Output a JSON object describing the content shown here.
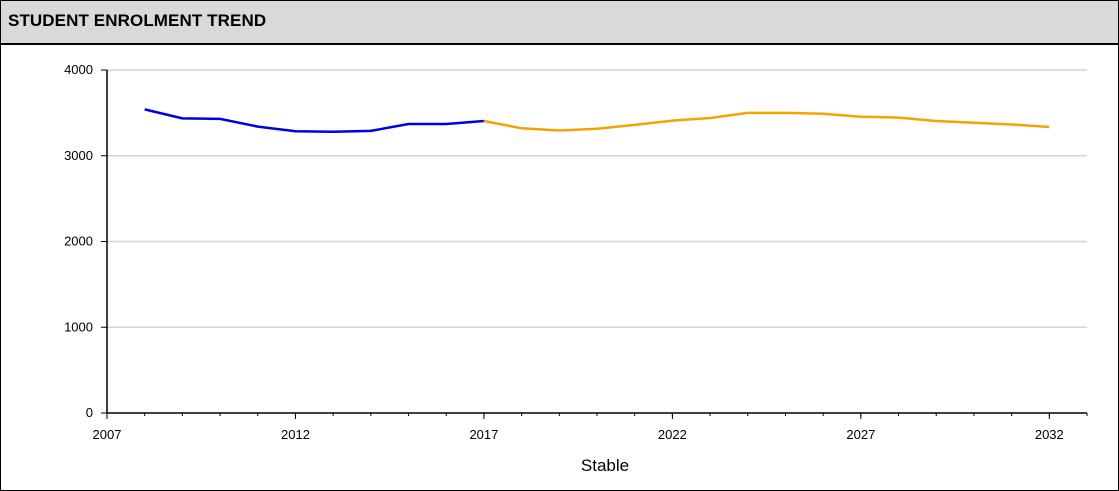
{
  "header": {
    "title": "STUDENT ENROLMENT TREND"
  },
  "chart_data": {
    "type": "line",
    "title": "STUDENT ENROLMENT TREND",
    "xlabel": "Stable",
    "ylabel": "",
    "xlim": [
      2007,
      2033
    ],
    "ylim": [
      0,
      4000
    ],
    "x_ticks": [
      "2007",
      "2012",
      "2017",
      "2022",
      "2027",
      "2032"
    ],
    "y_ticks": [
      "0",
      "1000",
      "2000",
      "3000",
      "4000"
    ],
    "grid": "horizontal",
    "legend": "none",
    "series": [
      {
        "color": "#0000e0",
        "points": [
          [
            2008,
            3540
          ],
          [
            2009,
            3435
          ],
          [
            2010,
            3430
          ],
          [
            2011,
            3340
          ],
          [
            2012,
            3285
          ],
          [
            2013,
            3280
          ],
          [
            2014,
            3290
          ],
          [
            2015,
            3370
          ],
          [
            2016,
            3370
          ],
          [
            2017,
            3405
          ]
        ]
      },
      {
        "color": "#f5a300",
        "points": [
          [
            2017,
            3405
          ],
          [
            2018,
            3320
          ],
          [
            2019,
            3295
          ],
          [
            2020,
            3315
          ],
          [
            2021,
            3360
          ],
          [
            2022,
            3410
          ],
          [
            2023,
            3440
          ],
          [
            2024,
            3500
          ],
          [
            2025,
            3500
          ],
          [
            2026,
            3490
          ],
          [
            2027,
            3455
          ],
          [
            2028,
            3445
          ],
          [
            2029,
            3405
          ],
          [
            2030,
            3385
          ],
          [
            2031,
            3365
          ],
          [
            2032,
            3335
          ]
        ]
      }
    ]
  }
}
